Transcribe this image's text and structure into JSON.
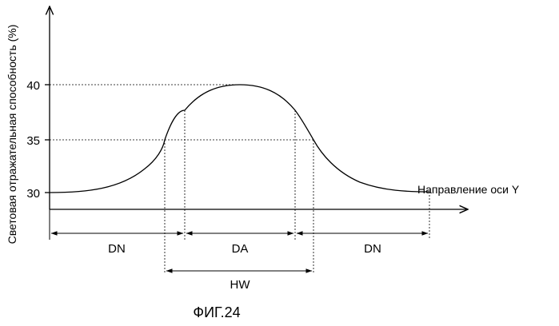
{
  "y_axis_title": "Световая отражательная способность (%)",
  "x_axis_title": "Направление оси Y",
  "y_ticks": [
    {
      "value": 40,
      "label": "40"
    },
    {
      "value": 35,
      "label": "35"
    },
    {
      "value": 30,
      "label": "30"
    }
  ],
  "regions": {
    "dn_left": "DN",
    "da": "DA",
    "dn_right": "DN",
    "hw": "HW"
  },
  "caption": "ФИГ.24"
}
